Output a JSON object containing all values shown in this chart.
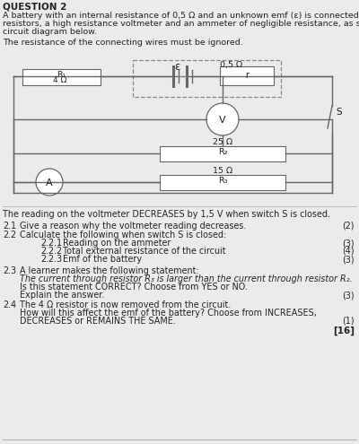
{
  "title": "QUESTION 2",
  "intro_line1": "A battery with an internal resistance of 0,5 Ω and an unknown emf (ε) is connected to three",
  "intro_line2": "resistors, a high resistance voltmeter and an ammeter of negligible resistance, as shown in the",
  "intro_line3": "circuit diagram below.",
  "wire_note": "The resistance of the connecting wires must be ignored.",
  "battery_emf": "ε",
  "internal_resistance": "0,5 Ω",
  "internal_r_label": "r",
  "R1_label": "R₁",
  "R1_value": "4 Ω",
  "R2_label": "R₂",
  "R2_value": "25 Ω",
  "R3_label": "R₃",
  "R3_value": "15 Ω",
  "voltmeter_label": "V",
  "ammeter_label": "A",
  "switch_label": "S",
  "voltmeter_note": "The reading on the voltmeter DECREASES by 1,5 V when switch S is closed.",
  "bg_color": "#ebebeb",
  "line_color": "#666666",
  "dashed_color": "#888888",
  "text_color": "#222222",
  "q21_num": "2.1",
  "q21_text": "Give a reason why the voltmeter reading decreases.",
  "q21_marks": "(2)",
  "q22_num": "2.2",
  "q22_text": "Calculate the following when switch S is closed:",
  "q221_num": "2.2.1",
  "q221_text": "Reading on the ammeter",
  "q221_marks": "(3)",
  "q222_num": "2.2.2",
  "q222_text": "Total external resistance of the circuit",
  "q222_marks": "(4)",
  "q223_num": "2.2.3",
  "q223_text": "Emf of the battery",
  "q223_marks": "(3)",
  "q23_num": "2.3",
  "q23_text": "A learner makes the following statement:",
  "q23_italic": "The current through resistor R₃ is larger than the current through resistor R₂.",
  "q23_q": "Is this statement CORRECT? Choose from YES or NO.",
  "q23_explain": "Explain the answer.",
  "q23_marks": "(3)",
  "q24_num": "2.4",
  "q24_text": "The 4 Ω resistor is now removed from the circuit.",
  "q24_q1": "How will this affect the emf of the battery? Choose from INCREASES,",
  "q24_q2": "DECREASES or REMAINS THE SAME.",
  "q24_marks": "(1)",
  "total": "[16]"
}
